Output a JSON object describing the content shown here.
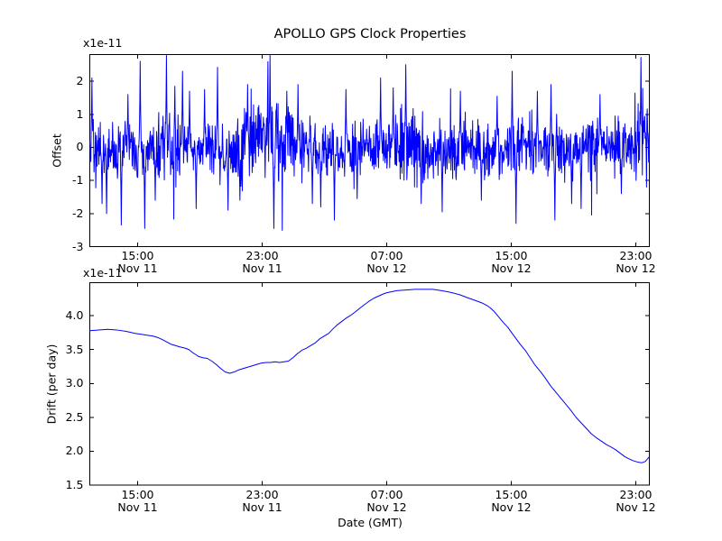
{
  "figure": {
    "background": "#ffffff",
    "axis_color": "#000000",
    "line_color": "#0000ff",
    "title": "APOLLO GPS Clock Properties"
  },
  "chart_data": [
    {
      "id": "offset",
      "type": "line",
      "title": "APOLLO GPS Clock Properties",
      "ylabel": "Offset",
      "offset_text": "x1e-11",
      "legend": "none",
      "grid": false,
      "ylim": [
        -3,
        2.806
      ],
      "yticks": [
        {
          "v": 2,
          "label": "2"
        },
        {
          "v": 1,
          "label": "1"
        },
        {
          "v": 0,
          "label": "0"
        },
        {
          "v": -1,
          "label": "-1"
        },
        {
          "v": -2,
          "label": "-2"
        },
        {
          "v": -3,
          "label": "-3"
        }
      ],
      "xticks": [
        {
          "f": 0.0855,
          "time": "15:00",
          "date": "Nov 11"
        },
        {
          "f": 0.3081,
          "time": "23:00",
          "date": "Nov 11"
        },
        {
          "f": 0.5306,
          "time": "07:00",
          "date": "Nov 12"
        },
        {
          "f": 0.7532,
          "time": "15:00",
          "date": "Nov 12"
        },
        {
          "f": 0.9758,
          "time": "23:00",
          "date": "Nov 12"
        }
      ],
      "x_span_hours": 35.9,
      "x_start": "Nov 11 ~11:55 GMT",
      "x_end": "Nov 12 ~23:52 GMT",
      "series_color": "#0000ff",
      "noise": {
        "n": 1600,
        "seed": 9176,
        "sigma": 0.4,
        "base": -0.04,
        "tail_prob": 0.04,
        "tail_mult": 1.9,
        "clip": [
          -2.99,
          2.8
        ],
        "mean_bumps": [
          {
            "c": 0.135,
            "w": 0.015,
            "a": 0.25
          },
          {
            "c": 0.3,
            "w": 0.04,
            "a": 0.18
          },
          {
            "c": 0.33,
            "w": 0.012,
            "a": 0.3
          },
          {
            "c": 0.45,
            "w": 0.03,
            "a": -0.15
          },
          {
            "c": 0.57,
            "w": 0.025,
            "a": 0.3
          },
          {
            "c": 0.65,
            "w": 0.04,
            "a": -0.1
          },
          {
            "c": 0.78,
            "w": 0.02,
            "a": 0.2
          },
          {
            "c": 0.92,
            "w": 0.03,
            "a": 0.15
          },
          {
            "c": 0.99,
            "w": 0.012,
            "a": 0.6
          }
        ],
        "sigma_bumps": [
          {
            "c": 0.135,
            "w": 0.02,
            "a": 0.4
          },
          {
            "c": 0.31,
            "w": 0.05,
            "a": 0.6
          },
          {
            "c": 0.57,
            "w": 0.03,
            "a": 0.5
          },
          {
            "c": 0.985,
            "w": 0.012,
            "a": 0.8
          }
        ],
        "spikes": [
          [
            0.004,
            2.1
          ],
          [
            0.022,
            -1.7
          ],
          [
            0.03,
            -2.0
          ],
          [
            0.056,
            -2.35
          ],
          [
            0.068,
            1.6
          ],
          [
            0.09,
            2.6
          ],
          [
            0.098,
            -2.45
          ],
          [
            0.117,
            -1.6
          ],
          [
            0.137,
            2.78
          ],
          [
            0.152,
            1.85
          ],
          [
            0.166,
            2.3
          ],
          [
            0.178,
            1.7
          ],
          [
            0.19,
            -1.85
          ],
          [
            0.205,
            1.75
          ],
          [
            0.228,
            2.42
          ],
          [
            0.247,
            -1.9
          ],
          [
            0.268,
            -1.6
          ],
          [
            0.282,
            1.9
          ],
          [
            0.322,
            2.82
          ],
          [
            0.329,
            -2.45
          ],
          [
            0.352,
            1.7
          ],
          [
            0.372,
            1.9
          ],
          [
            0.398,
            -1.7
          ],
          [
            0.413,
            -1.8
          ],
          [
            0.437,
            -2.2
          ],
          [
            0.458,
            1.75
          ],
          [
            0.478,
            -1.55
          ],
          [
            0.52,
            2.1
          ],
          [
            0.542,
            1.8
          ],
          [
            0.565,
            2.5
          ],
          [
            0.592,
            -1.7
          ],
          [
            0.63,
            -1.95
          ],
          [
            0.662,
            1.7
          ],
          [
            0.7,
            -1.6
          ],
          [
            0.728,
            1.55
          ],
          [
            0.755,
            2.3
          ],
          [
            0.762,
            -2.3
          ],
          [
            0.8,
            1.7
          ],
          [
            0.824,
            1.9
          ],
          [
            0.831,
            -2.2
          ],
          [
            0.861,
            -1.7
          ],
          [
            0.878,
            -1.85
          ],
          [
            0.912,
            1.6
          ],
          [
            0.95,
            -1.4
          ],
          [
            0.985,
            2.72
          ]
        ]
      }
    },
    {
      "id": "drift",
      "type": "line",
      "ylabel": "Drift (per day)",
      "xlabel": "Date (GMT)",
      "offset_text": "x1e-11",
      "legend": "none",
      "grid": false,
      "ylim": [
        1.5,
        4.488
      ],
      "yticks": [
        {
          "v": 4.0,
          "label": "4.0"
        },
        {
          "v": 3.5,
          "label": "3.5"
        },
        {
          "v": 3.0,
          "label": "3.0"
        },
        {
          "v": 2.5,
          "label": "2.5"
        },
        {
          "v": 2.0,
          "label": "2.0"
        },
        {
          "v": 1.5,
          "label": "1.5"
        }
      ],
      "xticks": [
        {
          "f": 0.0855,
          "time": "15:00",
          "date": "Nov 11"
        },
        {
          "f": 0.3081,
          "time": "23:00",
          "date": "Nov 11"
        },
        {
          "f": 0.5306,
          "time": "07:00",
          "date": "Nov 12"
        },
        {
          "f": 0.7532,
          "time": "15:00",
          "date": "Nov 12"
        },
        {
          "f": 0.9758,
          "time": "23:00",
          "date": "Nov 12"
        }
      ],
      "series_color": "#0000ff",
      "points": [
        [
          0.0,
          3.78
        ],
        [
          0.016,
          3.79
        ],
        [
          0.032,
          3.8
        ],
        [
          0.048,
          3.79
        ],
        [
          0.065,
          3.77
        ],
        [
          0.081,
          3.74
        ],
        [
          0.097,
          3.72
        ],
        [
          0.113,
          3.7
        ],
        [
          0.121,
          3.68
        ],
        [
          0.129,
          3.65
        ],
        [
          0.145,
          3.58
        ],
        [
          0.153,
          3.56
        ],
        [
          0.161,
          3.54
        ],
        [
          0.171,
          3.52
        ],
        [
          0.177,
          3.5
        ],
        [
          0.185,
          3.45
        ],
        [
          0.194,
          3.4
        ],
        [
          0.202,
          3.38
        ],
        [
          0.21,
          3.37
        ],
        [
          0.218,
          3.33
        ],
        [
          0.226,
          3.28
        ],
        [
          0.234,
          3.22
        ],
        [
          0.242,
          3.17
        ],
        [
          0.25,
          3.15
        ],
        [
          0.258,
          3.17
        ],
        [
          0.266,
          3.2
        ],
        [
          0.274,
          3.22
        ],
        [
          0.282,
          3.24
        ],
        [
          0.29,
          3.26
        ],
        [
          0.298,
          3.28
        ],
        [
          0.306,
          3.3
        ],
        [
          0.315,
          3.31
        ],
        [
          0.323,
          3.31
        ],
        [
          0.331,
          3.32
        ],
        [
          0.339,
          3.31
        ],
        [
          0.347,
          3.32
        ],
        [
          0.355,
          3.33
        ],
        [
          0.363,
          3.38
        ],
        [
          0.371,
          3.44
        ],
        [
          0.379,
          3.49
        ],
        [
          0.387,
          3.52
        ],
        [
          0.395,
          3.56
        ],
        [
          0.403,
          3.6
        ],
        [
          0.411,
          3.66
        ],
        [
          0.419,
          3.7
        ],
        [
          0.427,
          3.74
        ],
        [
          0.435,
          3.81
        ],
        [
          0.443,
          3.87
        ],
        [
          0.451,
          3.92
        ],
        [
          0.459,
          3.97
        ],
        [
          0.467,
          4.01
        ],
        [
          0.475,
          4.06
        ],
        [
          0.484,
          4.12
        ],
        [
          0.492,
          4.17
        ],
        [
          0.5,
          4.22
        ],
        [
          0.508,
          4.26
        ],
        [
          0.516,
          4.29
        ],
        [
          0.524,
          4.32
        ],
        [
          0.531,
          4.34
        ],
        [
          0.54,
          4.355
        ],
        [
          0.548,
          4.37
        ],
        [
          0.556,
          4.375
        ],
        [
          0.565,
          4.38
        ],
        [
          0.573,
          4.385
        ],
        [
          0.581,
          4.39
        ],
        [
          0.597,
          4.39
        ],
        [
          0.613,
          4.39
        ],
        [
          0.629,
          4.37
        ],
        [
          0.645,
          4.345
        ],
        [
          0.661,
          4.31
        ],
        [
          0.677,
          4.26
        ],
        [
          0.694,
          4.21
        ],
        [
          0.702,
          4.185
        ],
        [
          0.71,
          4.15
        ],
        [
          0.715,
          4.12
        ],
        [
          0.723,
          4.06
        ],
        [
          0.731,
          3.98
        ],
        [
          0.739,
          3.9
        ],
        [
          0.747,
          3.83
        ],
        [
          0.753,
          3.76
        ],
        [
          0.761,
          3.67
        ],
        [
          0.769,
          3.58
        ],
        [
          0.779,
          3.48
        ],
        [
          0.787,
          3.38
        ],
        [
          0.795,
          3.28
        ],
        [
          0.806,
          3.17
        ],
        [
          0.814,
          3.08
        ],
        [
          0.824,
          2.96
        ],
        [
          0.834,
          2.86
        ],
        [
          0.844,
          2.76
        ],
        [
          0.852,
          2.68
        ],
        [
          0.86,
          2.6
        ],
        [
          0.869,
          2.5
        ],
        [
          0.878,
          2.42
        ],
        [
          0.887,
          2.34
        ],
        [
          0.896,
          2.26
        ],
        [
          0.905,
          2.2
        ],
        [
          0.914,
          2.15
        ],
        [
          0.923,
          2.1
        ],
        [
          0.932,
          2.06
        ],
        [
          0.94,
          2.02
        ],
        [
          0.948,
          1.97
        ],
        [
          0.956,
          1.92
        ],
        [
          0.963,
          1.89
        ],
        [
          0.971,
          1.86
        ],
        [
          0.979,
          1.84
        ],
        [
          0.987,
          1.83
        ],
        [
          0.993,
          1.85
        ],
        [
          1.0,
          1.92
        ]
      ]
    }
  ]
}
